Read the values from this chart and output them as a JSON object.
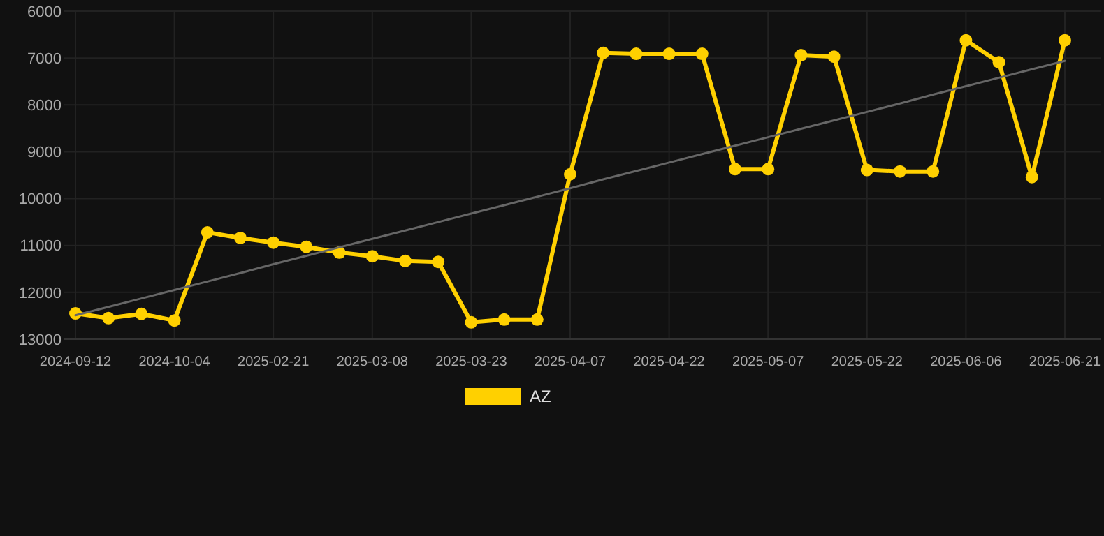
{
  "chart_data": {
    "type": "line",
    "categories": [
      "2024-09-12",
      null,
      null,
      "2024-10-04",
      null,
      null,
      "2025-02-21",
      null,
      null,
      "2025-03-08",
      null,
      null,
      "2025-03-23",
      null,
      null,
      "2025-04-07",
      null,
      null,
      "2025-04-22",
      null,
      null,
      "2025-05-07",
      null,
      null,
      "2025-05-22",
      null,
      null,
      "2025-06-06",
      null,
      null,
      "2025-06-21"
    ],
    "series": [
      {
        "name": "AZ",
        "color": "#ffd000",
        "values": [
          12450,
          12550,
          12460,
          12600,
          10720,
          10840,
          10940,
          11030,
          11150,
          11230,
          11330,
          11350,
          12640,
          12580,
          12580,
          9480,
          6890,
          6910,
          6910,
          6910,
          9370,
          9370,
          6940,
          6970,
          9390,
          9420,
          9420,
          6620,
          7090,
          9540,
          6620
        ]
      },
      {
        "type": "line",
        "color": "#666666",
        "values": [
          12490,
          12310,
          12130,
          11950,
          11770,
          11590,
          11400,
          11220,
          11040,
          10860,
          10680,
          10500,
          10320,
          10140,
          9960,
          9780,
          9590,
          9410,
          9230,
          9050,
          8870,
          8690,
          8510,
          8330,
          8150,
          7970,
          7780,
          7600,
          7420,
          7240,
          7060
        ],
        "marker": "none"
      }
    ],
    "ylim": [
      13000,
      6000
    ],
    "yticks": [
      6000,
      7000,
      8000,
      9000,
      10000,
      11000,
      12000,
      13000
    ],
    "grid": true,
    "legend": "bottom",
    "marker": "circle",
    "line_style": "solid"
  }
}
